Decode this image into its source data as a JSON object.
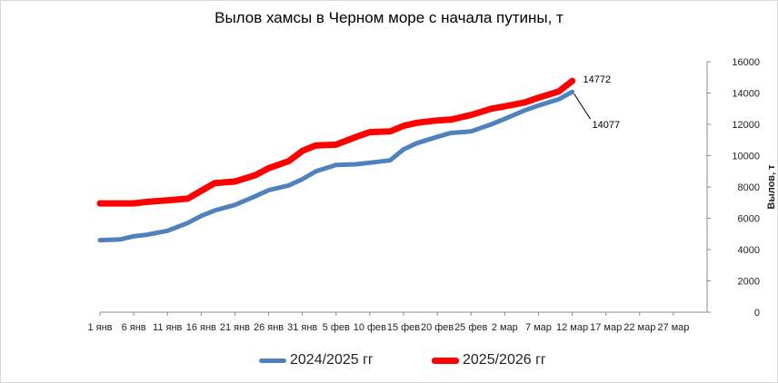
{
  "chart_data": {
    "type": "line",
    "title": "Вылов хамсы в Черном море с начала путины, т",
    "ylabel": "Вылов, т",
    "xlabel": "",
    "ylim": [
      0,
      16000
    ],
    "yticks": [
      "0",
      "2000",
      "4000",
      "6000",
      "8000",
      "10000",
      "12000",
      "14000",
      "16000"
    ],
    "x_range": [
      "1 янв",
      "1 апр"
    ],
    "xticks": [
      "1 янв",
      "6 янв",
      "11 янв",
      "16 янв",
      "21 янв",
      "26 янв",
      "31 янв",
      "5 фев",
      "10 фев",
      "15 фев",
      "20 фев",
      "25 фев",
      "2 мар",
      "7 мар",
      "12 мар",
      "17 мар",
      "22 мар",
      "27 мар"
    ],
    "grid": false,
    "legend_position": "bottom",
    "series": [
      {
        "name": "2024/2025 гг",
        "color": "#4f81bd",
        "x": [
          "1 янв",
          "4 янв",
          "6 янв",
          "8 янв",
          "11 янв",
          "14 янв",
          "16 янв",
          "18 янв",
          "21 янв",
          "24 янв",
          "26 янв",
          "29 янв",
          "31 янв",
          "2 фев",
          "5 фев",
          "8 фев",
          "10 фев",
          "13 фев",
          "15 фев",
          "17 фев",
          "20 фев",
          "22 фев",
          "25 фев",
          "28 фев",
          "2 мар",
          "5 мар",
          "7 мар",
          "10 мар",
          "12 мар"
        ],
        "values": [
          4600,
          4650,
          4850,
          4950,
          5200,
          5700,
          6150,
          6500,
          6850,
          7400,
          7800,
          8100,
          8500,
          9000,
          9400,
          9450,
          9550,
          9700,
          10400,
          10800,
          11200,
          11450,
          11550,
          12000,
          12350,
          12900,
          13200,
          13600,
          14077
        ]
      },
      {
        "name": "2025/2026 гг",
        "color": "#ff0000",
        "x": [
          "1 янв",
          "4 янв",
          "6 янв",
          "8 янв",
          "11 янв",
          "14 янв",
          "16 янв",
          "18 янв",
          "21 янв",
          "24 янв",
          "26 янв",
          "29 янв",
          "31 янв",
          "2 фев",
          "5 фев",
          "8 фев",
          "10 фев",
          "13 фев",
          "15 фев",
          "17 фев",
          "20 фев",
          "22 фев",
          "25 фев",
          "28 фев",
          "2 мар",
          "5 мар",
          "7 мар",
          "10 мар",
          "12 мар"
        ],
        "values": [
          6950,
          6950,
          6950,
          7050,
          7150,
          7250,
          7750,
          8250,
          8350,
          8750,
          9200,
          9650,
          10300,
          10650,
          10700,
          11200,
          11500,
          11550,
          11900,
          12100,
          12250,
          12300,
          12600,
          13000,
          13150,
          13400,
          13700,
          14100,
          14772
        ]
      }
    ],
    "annotations": [
      "14772",
      "14077"
    ]
  }
}
